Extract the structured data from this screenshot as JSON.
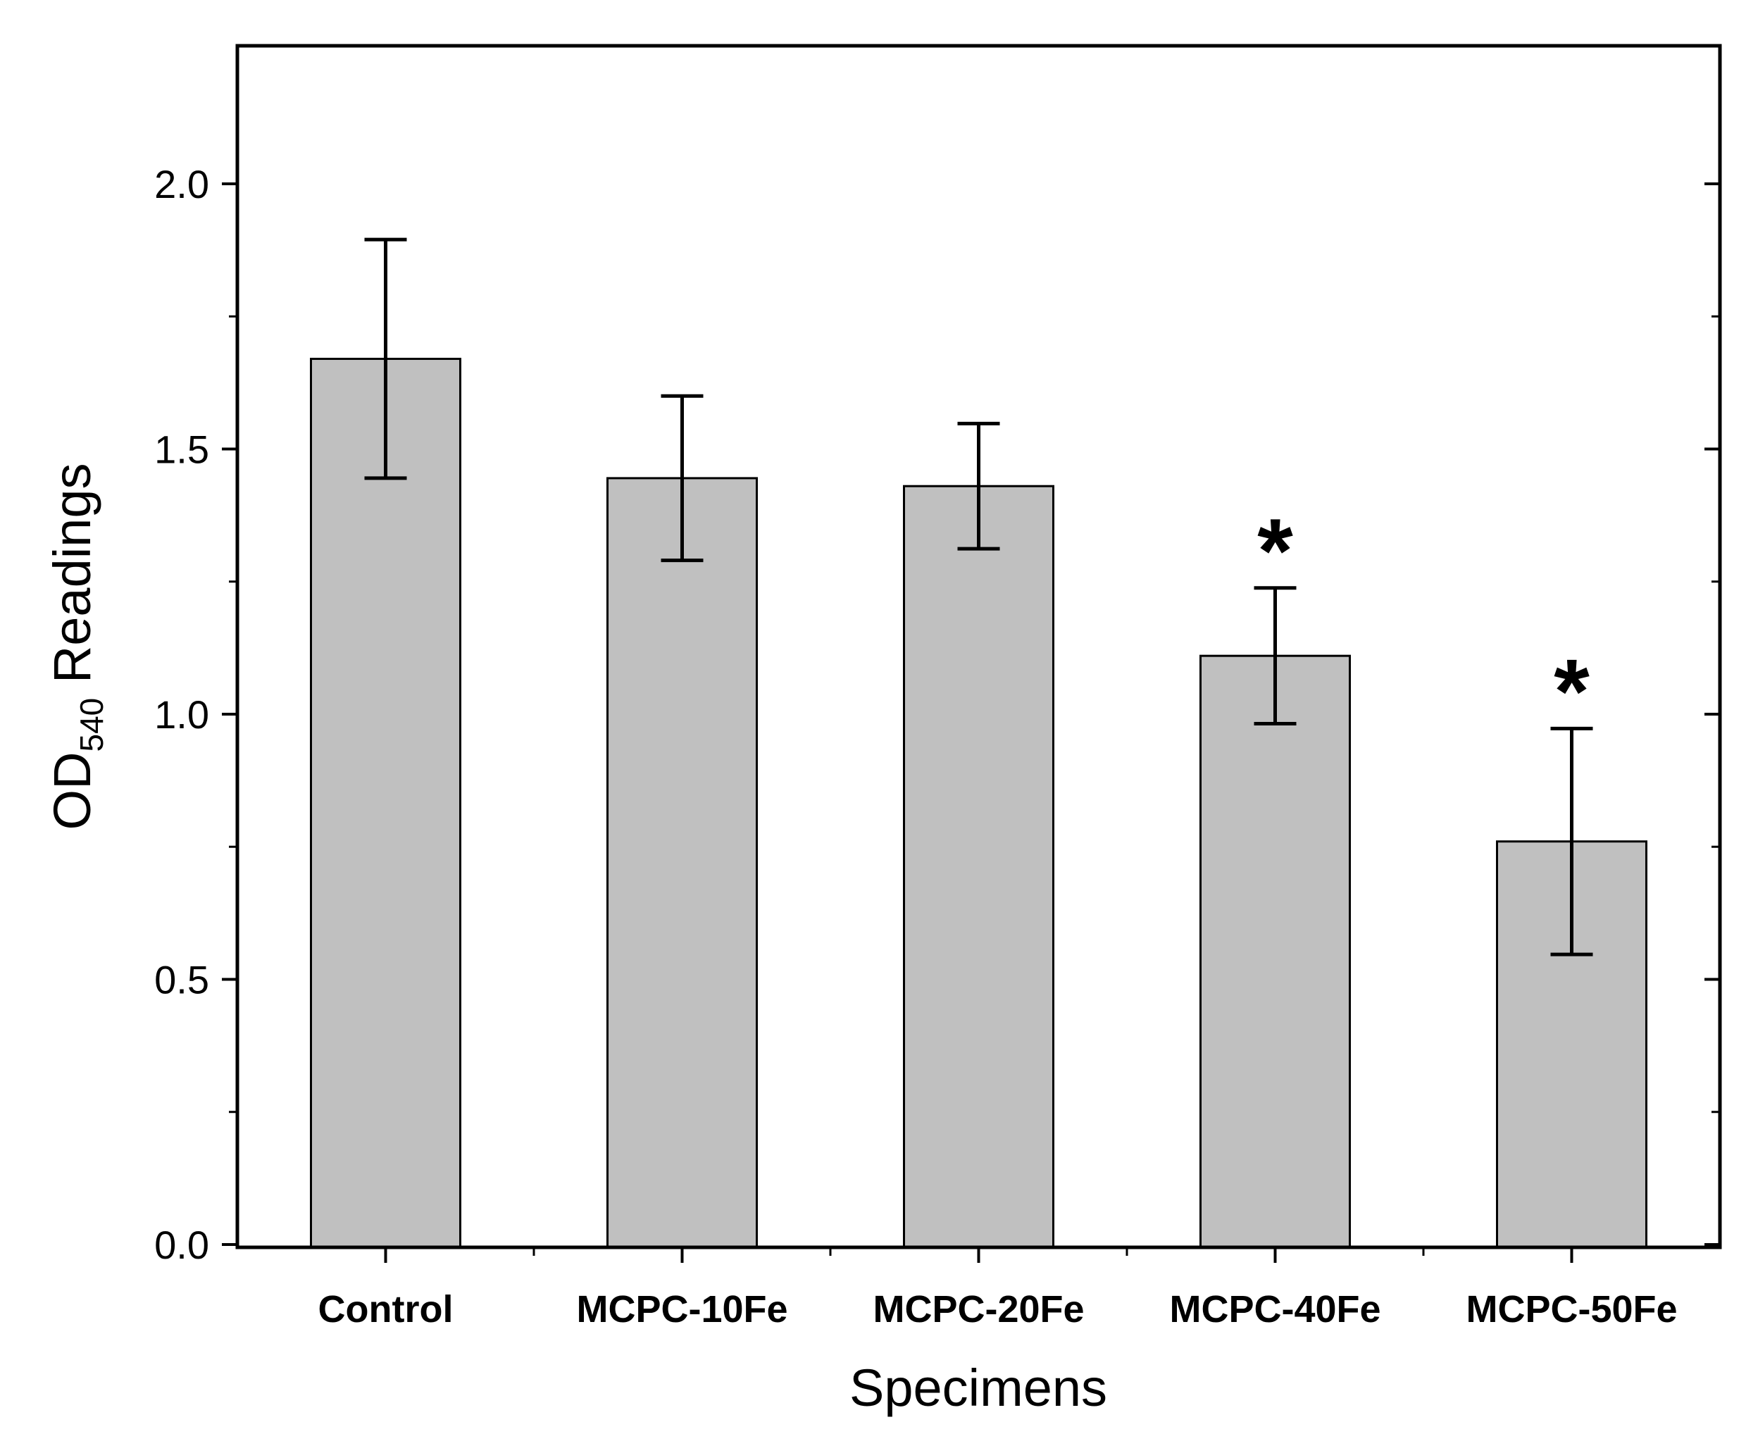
{
  "chart_data": {
    "type": "bar",
    "title": "",
    "xlabel": "Specimens",
    "ylabel_main": "OD",
    "ylabel_sub": "540",
    "ylabel_rest": " Readings",
    "categories": [
      "Control",
      "MCPC-10Fe",
      "MCPC-20Fe",
      "MCPC-40Fe",
      "MCPC-50Fe"
    ],
    "values": [
      1.67,
      1.445,
      1.43,
      1.11,
      0.76
    ],
    "errors": [
      0.225,
      0.155,
      0.118,
      0.128,
      0.213
    ],
    "significance": [
      "",
      "",
      "",
      "*",
      "*"
    ],
    "ylim": [
      0,
      2.25
    ],
    "yticks": [
      0.0,
      0.5,
      1.0,
      1.5,
      2.0
    ],
    "ytick_labels": [
      "0.0",
      "0.5",
      "1.0",
      "1.5",
      "2.0"
    ],
    "minor_yticks": [
      0.25,
      0.75,
      1.25,
      1.75
    ],
    "grid": false,
    "legend": "none"
  },
  "colors": {
    "bar_fill": "#c0c0c0",
    "bar_stroke": "#000000",
    "axis": "#000000",
    "background": "#ffffff"
  }
}
